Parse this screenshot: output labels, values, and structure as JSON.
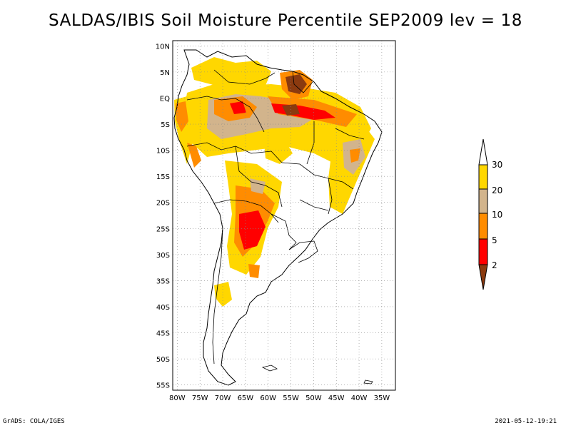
{
  "title": "SALDAS/IBIS Soil Moisture Percentile SEP2009 lev = 18",
  "map": {
    "lon_ticks": [
      "80W",
      "75W",
      "70W",
      "65W",
      "60W",
      "55W",
      "50W",
      "45W",
      "40W",
      "35W"
    ],
    "lat_ticks": [
      "10N",
      "5N",
      "EQ",
      "5S",
      "10S",
      "15S",
      "20S",
      "25S",
      "30S",
      "35S",
      "40S",
      "45S",
      "50S",
      "55S"
    ],
    "lon_range": [
      -81,
      -32
    ],
    "lat_range": [
      -56,
      11
    ],
    "grid": true
  },
  "legend": {
    "levels": [
      "2",
      "5",
      "10",
      "20",
      "30"
    ],
    "colors": {
      "below_2": "#8b3a0f",
      "2_5": "#ff0000",
      "5_10": "#ff8c00",
      "10_20": "#d2b48c",
      "20_30": "#ffd700",
      "above_30": "#ffffff"
    }
  },
  "footer": {
    "left": "GrADS: COLA/IGES",
    "right": "2021-05-12-19:21"
  }
}
